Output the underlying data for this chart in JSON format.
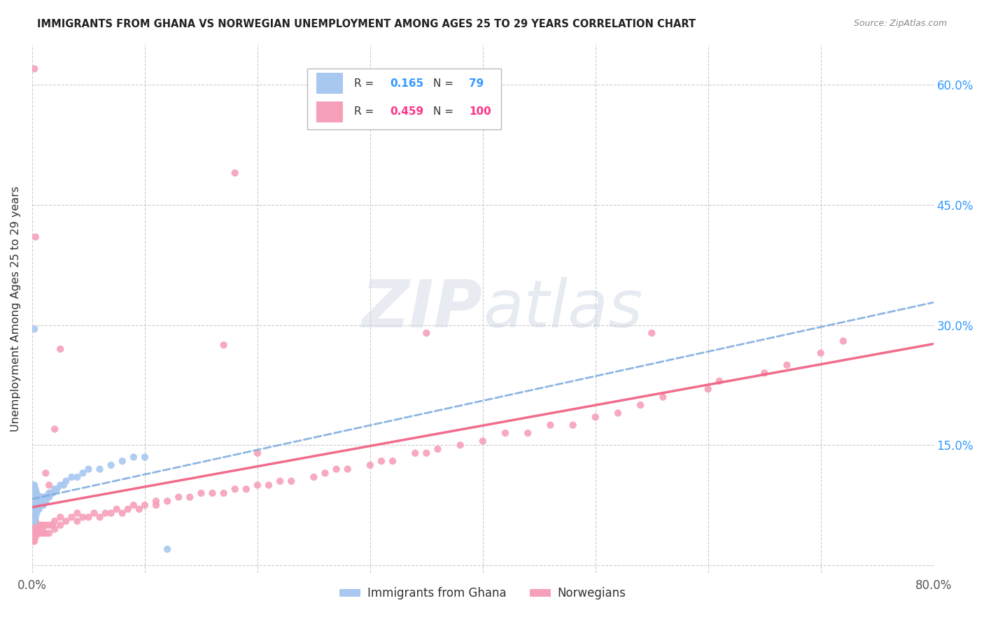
{
  "title": "IMMIGRANTS FROM GHANA VS NORWEGIAN UNEMPLOYMENT AMONG AGES 25 TO 29 YEARS CORRELATION CHART",
  "source": "Source: ZipAtlas.com",
  "ylabel": "Unemployment Among Ages 25 to 29 years",
  "xlim": [
    0.0,
    0.8
  ],
  "ylim": [
    -0.01,
    0.65
  ],
  "ghana_color": "#a8c8f0",
  "norway_color": "#f5a0b8",
  "ghana_line_color": "#7aaadd",
  "norway_line_color": "#f06080",
  "ghana_R": 0.165,
  "ghana_N": 79,
  "norway_R": 0.459,
  "norway_N": 100,
  "watermark_text": "ZIPatlas",
  "watermark_color": "#ccd8ea",
  "ghana_x": [
    0.001,
    0.001,
    0.001,
    0.001,
    0.001,
    0.001,
    0.001,
    0.001,
    0.001,
    0.001,
    0.002,
    0.002,
    0.002,
    0.002,
    0.002,
    0.002,
    0.002,
    0.002,
    0.002,
    0.002,
    0.003,
    0.003,
    0.003,
    0.003,
    0.003,
    0.003,
    0.003,
    0.003,
    0.004,
    0.004,
    0.004,
    0.004,
    0.004,
    0.004,
    0.005,
    0.005,
    0.005,
    0.005,
    0.006,
    0.006,
    0.006,
    0.006,
    0.007,
    0.007,
    0.007,
    0.008,
    0.008,
    0.008,
    0.009,
    0.009,
    0.01,
    0.01,
    0.01,
    0.011,
    0.011,
    0.012,
    0.012,
    0.013,
    0.014,
    0.015,
    0.015,
    0.016,
    0.018,
    0.02,
    0.022,
    0.025,
    0.028,
    0.03,
    0.035,
    0.04,
    0.045,
    0.05,
    0.06,
    0.07,
    0.08,
    0.09,
    0.1,
    0.002,
    0.12
  ],
  "ghana_y": [
    0.055,
    0.06,
    0.065,
    0.07,
    0.075,
    0.08,
    0.085,
    0.09,
    0.095,
    0.1,
    0.055,
    0.06,
    0.065,
    0.07,
    0.075,
    0.08,
    0.085,
    0.09,
    0.095,
    0.1,
    0.06,
    0.065,
    0.07,
    0.075,
    0.08,
    0.085,
    0.09,
    0.095,
    0.065,
    0.07,
    0.075,
    0.08,
    0.085,
    0.09,
    0.07,
    0.075,
    0.08,
    0.085,
    0.07,
    0.075,
    0.08,
    0.085,
    0.075,
    0.08,
    0.085,
    0.075,
    0.08,
    0.085,
    0.075,
    0.08,
    0.075,
    0.08,
    0.085,
    0.08,
    0.085,
    0.08,
    0.085,
    0.085,
    0.085,
    0.085,
    0.09,
    0.09,
    0.09,
    0.095,
    0.095,
    0.1,
    0.1,
    0.105,
    0.11,
    0.11,
    0.115,
    0.12,
    0.12,
    0.125,
    0.13,
    0.135,
    0.135,
    0.295,
    0.02
  ],
  "norway_x": [
    0.001,
    0.001,
    0.001,
    0.001,
    0.001,
    0.002,
    0.002,
    0.002,
    0.002,
    0.003,
    0.003,
    0.003,
    0.004,
    0.004,
    0.005,
    0.005,
    0.006,
    0.006,
    0.007,
    0.008,
    0.008,
    0.009,
    0.01,
    0.01,
    0.012,
    0.012,
    0.015,
    0.015,
    0.018,
    0.02,
    0.02,
    0.025,
    0.025,
    0.03,
    0.035,
    0.04,
    0.04,
    0.045,
    0.05,
    0.055,
    0.06,
    0.065,
    0.07,
    0.075,
    0.08,
    0.085,
    0.09,
    0.095,
    0.1,
    0.11,
    0.11,
    0.12,
    0.13,
    0.14,
    0.15,
    0.16,
    0.17,
    0.18,
    0.19,
    0.2,
    0.2,
    0.21,
    0.22,
    0.23,
    0.25,
    0.26,
    0.27,
    0.28,
    0.3,
    0.31,
    0.32,
    0.34,
    0.35,
    0.36,
    0.38,
    0.4,
    0.42,
    0.44,
    0.46,
    0.48,
    0.5,
    0.52,
    0.54,
    0.56,
    0.6,
    0.61,
    0.65,
    0.67,
    0.7,
    0.72,
    0.012,
    0.015,
    0.02,
    0.025,
    0.17,
    0.35,
    0.55,
    0.002,
    0.18,
    0.003
  ],
  "norway_y": [
    0.03,
    0.04,
    0.05,
    0.055,
    0.06,
    0.03,
    0.04,
    0.05,
    0.055,
    0.035,
    0.045,
    0.055,
    0.04,
    0.05,
    0.04,
    0.05,
    0.04,
    0.05,
    0.045,
    0.04,
    0.05,
    0.045,
    0.04,
    0.05,
    0.04,
    0.05,
    0.04,
    0.05,
    0.05,
    0.045,
    0.055,
    0.05,
    0.06,
    0.055,
    0.06,
    0.055,
    0.065,
    0.06,
    0.06,
    0.065,
    0.06,
    0.065,
    0.065,
    0.07,
    0.065,
    0.07,
    0.075,
    0.07,
    0.075,
    0.075,
    0.08,
    0.08,
    0.085,
    0.085,
    0.09,
    0.09,
    0.09,
    0.095,
    0.095,
    0.1,
    0.14,
    0.1,
    0.105,
    0.105,
    0.11,
    0.115,
    0.12,
    0.12,
    0.125,
    0.13,
    0.13,
    0.14,
    0.14,
    0.145,
    0.15,
    0.155,
    0.165,
    0.165,
    0.175,
    0.175,
    0.185,
    0.19,
    0.2,
    0.21,
    0.22,
    0.23,
    0.24,
    0.25,
    0.265,
    0.28,
    0.115,
    0.1,
    0.17,
    0.27,
    0.275,
    0.29,
    0.29,
    0.62,
    0.49,
    0.41
  ]
}
